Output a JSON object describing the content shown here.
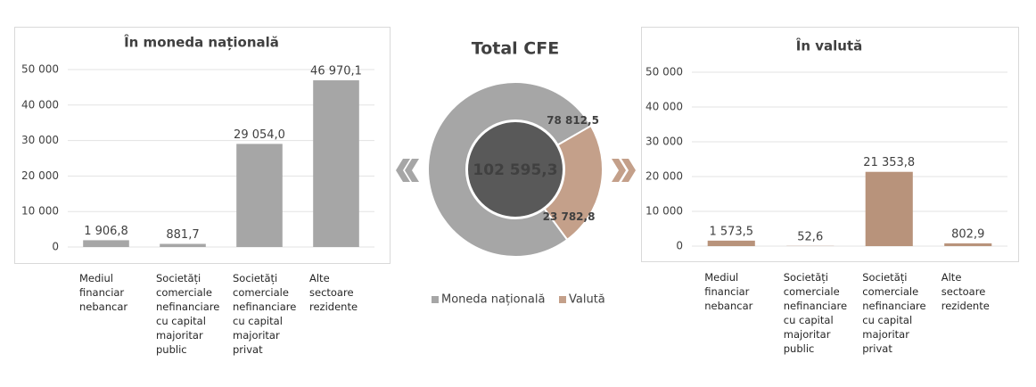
{
  "chart_data": [
    {
      "type": "bar",
      "title": "În moneda națională",
      "categories": [
        "Mediul financiar nebancar",
        "Societăți comerciale nefinanciare cu capital majoritar public",
        "Societăți comerciale nefinanciare cu capital majoritar privat",
        "Alte sectoare rezidente"
      ],
      "values": [
        1906.8,
        881.7,
        29054.0,
        46970.1
      ],
      "value_labels": [
        "1 906,8",
        "881,7",
        "29 054,0",
        "46 970,1"
      ],
      "color": "#a6a6a6",
      "ylim": [
        0,
        50000
      ],
      "yticks": [
        0,
        {
          "value": 10000,
          "label": "10 000"
        },
        {
          "value": 20000,
          "label": "20 000"
        },
        {
          "value": 30000,
          "label": "30 000"
        },
        {
          "value": 40000,
          "label": "40 000"
        },
        {
          "value": 50000,
          "label": "50 000"
        }
      ],
      "grid": true
    },
    {
      "type": "donut",
      "title": "Total CFE",
      "categories": [
        "Moneda națională",
        "Valută"
      ],
      "values": [
        78812.5,
        23782.8
      ],
      "value_labels": [
        "78 812,5",
        "23 782,8"
      ],
      "colors": [
        "#a6a6a6",
        "#c4a08a"
      ],
      "center_label": "102 595,3",
      "center_color": "#595959"
    },
    {
      "type": "bar",
      "title": "În valută",
      "categories": [
        "Mediul financiar nebancar",
        "Societăți comerciale nefinanciare cu capital majoritar public",
        "Societăți comerciale nefinanciare cu capital majoritar privat",
        "Alte sectoare rezidente"
      ],
      "values": [
        1573.5,
        52.6,
        21353.8,
        802.9
      ],
      "value_labels": [
        "1 573,5",
        "52,6",
        "21 353,8",
        "802,9"
      ],
      "color": "#b8937b",
      "ylim": [
        0,
        50000
      ],
      "yticks": [
        0,
        {
          "value": 10000,
          "label": "10 000"
        },
        {
          "value": 20000,
          "label": "20 000"
        },
        {
          "value": 30000,
          "label": "30 000"
        },
        {
          "value": 40000,
          "label": "40 000"
        },
        {
          "value": 50000,
          "label": "50 000"
        }
      ],
      "grid": true
    }
  ]
}
